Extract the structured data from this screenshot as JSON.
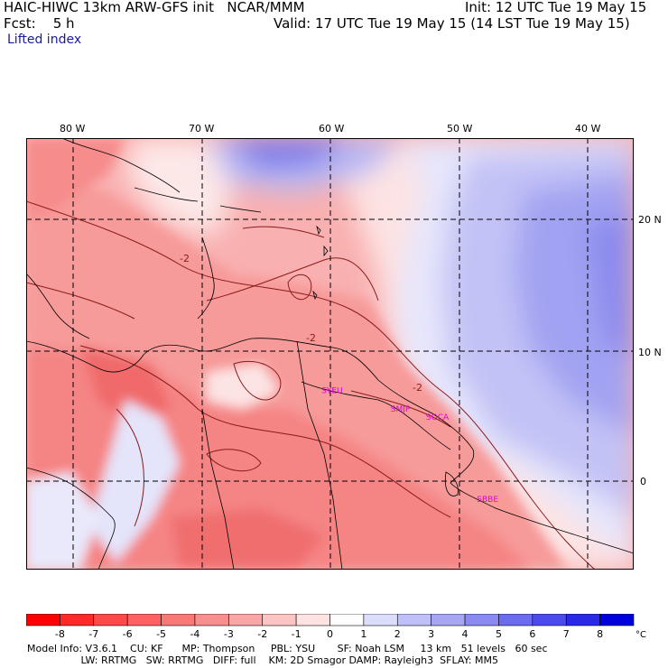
{
  "header": {
    "model_line": "HAIC-HIWC 13km ARW-GFS init   NCAR/MMM",
    "init": "Init: 12 UTC Tue 19 May 15",
    "fcst": "Fcst:    5 h",
    "valid": "Valid: 17 UTC Tue 19 May 15 (14 LST Tue 19 May 15)",
    "field": "Lifted index"
  },
  "map": {
    "lon_labels": [
      "80 W",
      "70 W",
      "60 W",
      "50 W",
      "40 W"
    ],
    "lon_values": [
      -80,
      -70,
      -60,
      -50,
      -40
    ],
    "lat_labels": [
      "20 N",
      "10 N",
      "0"
    ],
    "lat_values": [
      20,
      10,
      0
    ],
    "lon_range": [
      -83,
      -36.5
    ],
    "lat_range": [
      -6.5,
      26
    ],
    "contour_label": "-2",
    "cities": [
      {
        "name": "SYEU",
        "lon": -60.4,
        "lat": 6.8
      },
      {
        "name": "SMJP",
        "lon": -55.1,
        "lat": 5.4
      },
      {
        "name": "SOCA",
        "lon": -52.4,
        "lat": 4.8
      },
      {
        "name": "SBBE",
        "lon": -48.5,
        "lat": -1.4
      }
    ]
  },
  "colorbar": {
    "labels": [
      "-8",
      "-7",
      "-6",
      "-5",
      "-4",
      "-3",
      "-2",
      "-1",
      "0",
      "1",
      "2",
      "3",
      "4",
      "5",
      "6",
      "7",
      "8"
    ],
    "unit": "°C",
    "colors": [
      "#ff0000",
      "#ff2a2a",
      "#ff4a4a",
      "#fd6161",
      "#f97878",
      "#f98e8e",
      "#fba6a6",
      "#fdc4c4",
      "#ffe2e2",
      "#fdfdfd",
      "#dcdcfb",
      "#c0c0f8",
      "#a6a6f5",
      "#8a8af2",
      "#6c6cef",
      "#4c4cec",
      "#2a2ae6",
      "#0000dc"
    ]
  },
  "footer": {
    "line1": "Model Info: V3.6.1    CU: KF      MP: Thompson     PBL: YSU       SF: Noah LSM     13 km   51 levels   60 sec",
    "line2": "                 LW: RRTMG   SW: RRTMG   DIFF: full    KM: 2D Smagor DAMP: Rayleigh3  SFLAY: MM5"
  }
}
